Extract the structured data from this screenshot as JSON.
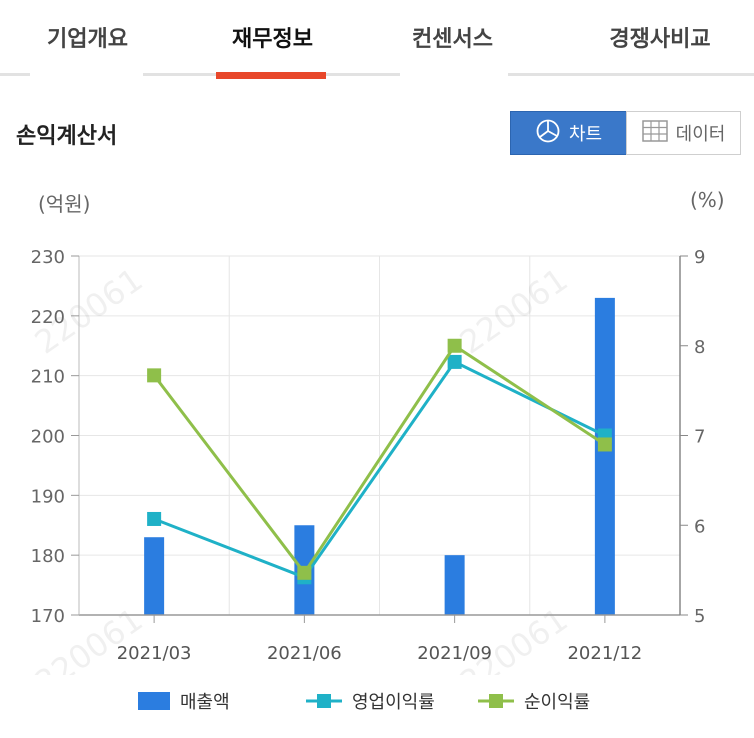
{
  "tabs": [
    {
      "label": "기업개요",
      "active": false
    },
    {
      "label": "재무정보",
      "active": true
    },
    {
      "label": "컨센서스",
      "active": false
    },
    {
      "label": "경쟁사비교",
      "active": false
    }
  ],
  "section_title": "손익계산서",
  "view_toggle": {
    "chart_label": "차트",
    "data_label": "데이터",
    "selected": "chart"
  },
  "colors": {
    "bar": "#2b7de0",
    "line1": "#1fb1c7",
    "line2": "#8fbf4a",
    "accent": "#e8472a",
    "toggle_on": "#3a78c9"
  },
  "chart_data": {
    "type": "bar",
    "categories": [
      "2021/03",
      "2021/06",
      "2021/09",
      "2021/12"
    ],
    "left_unit": "(억원)",
    "right_unit": "(%)",
    "y_left": {
      "min": 170,
      "max": 230,
      "ticks": [
        170,
        180,
        190,
        200,
        210,
        220,
        230
      ]
    },
    "y_right": {
      "min": 5,
      "max": 9,
      "ticks": [
        5,
        6,
        7,
        8,
        9
      ]
    },
    "series": [
      {
        "name": "매출액",
        "type": "bar",
        "axis": "left",
        "values": [
          183,
          185,
          180,
          223
        ]
      },
      {
        "name": "영업이익률",
        "type": "line",
        "axis": "right",
        "values": [
          6.07,
          5.42,
          7.82,
          7.0
        ]
      },
      {
        "name": "순이익률",
        "type": "line",
        "axis": "right",
        "values": [
          7.67,
          5.47,
          8.0,
          6.9
        ]
      }
    ],
    "grid": true,
    "legend_position": "bottom",
    "watermark": "220061"
  }
}
